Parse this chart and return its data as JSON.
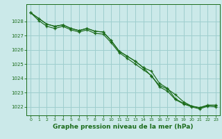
{
  "bg_color": "#cbe9e9",
  "grid_color": "#9ecece",
  "line_color": "#1a6b1a",
  "xlabel": "Graphe pression niveau de la mer (hPa)",
  "xlabel_fontsize": 6.5,
  "ylim": [
    1021.4,
    1029.2
  ],
  "xlim": [
    -0.5,
    23.5
  ],
  "yticks": [
    1022,
    1023,
    1024,
    1025,
    1026,
    1027,
    1028
  ],
  "xticks": [
    0,
    1,
    2,
    3,
    4,
    5,
    6,
    7,
    8,
    9,
    10,
    11,
    12,
    13,
    14,
    15,
    16,
    17,
    18,
    19,
    20,
    21,
    22,
    23
  ],
  "series1": [
    1028.6,
    1028.2,
    1027.8,
    1027.65,
    1027.75,
    1027.5,
    1027.35,
    1027.5,
    1027.3,
    1027.25,
    1026.65,
    1025.9,
    1025.55,
    1025.2,
    1024.75,
    1024.5,
    1023.65,
    1023.3,
    1022.55,
    1022.25,
    1022.05,
    1021.92,
    1022.1,
    1022.1
  ],
  "series2": [
    1028.6,
    1028.2,
    1027.8,
    1027.65,
    1027.75,
    1027.5,
    1027.35,
    1027.5,
    1027.3,
    1027.25,
    1026.65,
    1025.9,
    1025.55,
    1025.2,
    1024.75,
    1024.15,
    1023.5,
    1023.25,
    1022.85,
    1022.35,
    1022.05,
    1021.95,
    1022.12,
    1022.12
  ],
  "series3": [
    1028.6,
    1028.05,
    1027.65,
    1027.5,
    1027.65,
    1027.4,
    1027.25,
    1027.4,
    1027.15,
    1027.1,
    1026.5,
    1025.8,
    1025.4,
    1025.0,
    1024.6,
    1024.2,
    1023.4,
    1023.1,
    1022.5,
    1022.2,
    1022.0,
    1021.85,
    1022.05,
    1022.0
  ]
}
